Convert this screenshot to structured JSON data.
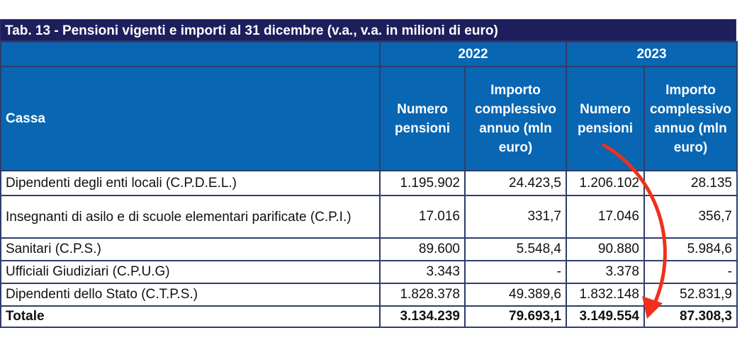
{
  "title": "Tab. 13 - Pensioni vigenti e importi al 31 dicembre (v.a., v.a. in milioni di euro)",
  "years": [
    "2022",
    "2023"
  ],
  "headers": {
    "cassa": "Cassa",
    "numero": "Numero pensioni",
    "importo": "Importo complessivo annuo (mln euro)"
  },
  "rows": [
    {
      "label": "Dipendenti degli enti locali (C.P.D.E.L.)",
      "v": [
        "1.195.902",
        "24.423,5",
        "1.206.102",
        "28.135"
      ]
    },
    {
      "label": "Insegnanti di asilo e di scuole elementari parificate (C.P.I.)",
      "v": [
        "17.016",
        "331,7",
        "17.046",
        "356,7"
      ]
    },
    {
      "label": "Sanitari (C.P.S.)",
      "v": [
        "89.600",
        "5.548,4",
        "90.880",
        "5.984,6"
      ]
    },
    {
      "label": "Ufficiali Giudiziari (C.P.U.G)",
      "v": [
        "3.343",
        "-",
        "3.378",
        "-"
      ]
    },
    {
      "label": "Dipendenti dello Stato (C.T.P.S.)",
      "v": [
        "1.828.378",
        "49.389,6",
        "1.832.148",
        "52.831,9"
      ]
    }
  ],
  "total": {
    "label": "Totale",
    "v": [
      "3.134.239",
      "79.693,1",
      "3.149.554",
      "87.308,3"
    ]
  },
  "annotation": {
    "color": "#f0301c",
    "icon": "red-curved-arrow"
  }
}
